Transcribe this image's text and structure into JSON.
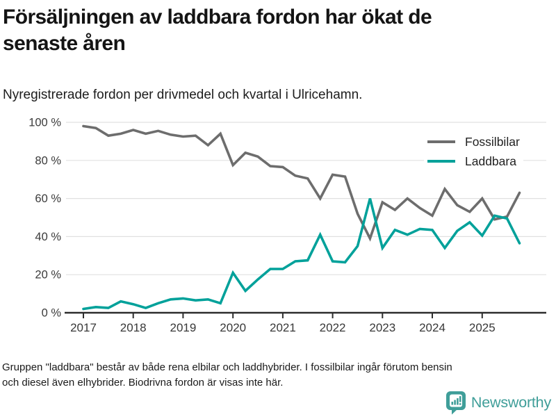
{
  "header": {
    "title_lines": [
      "Försäljningen av laddbara fordon har ökat de",
      "senaste åren"
    ],
    "subtitle": "Nyregistrerade fordon per drivmedel och kvartal i Ulricehamn."
  },
  "chart_data": {
    "type": "line",
    "title": "Försäljningen av laddbara fordon har ökat de senaste åren",
    "subtitle": "Nyregistrerade fordon per drivmedel och kvartal i Ulricehamn.",
    "x_unit": "quarter",
    "x_start": "2017 Q1",
    "x_end": "2025 Q4",
    "x_tick_labels": [
      "2017",
      "2018",
      "2019",
      "2020",
      "2021",
      "2022",
      "2023",
      "2024",
      "2025"
    ],
    "y_tick_labels": [
      "0 %",
      "20 %",
      "40 %",
      "60 %",
      "80 %",
      "100 %"
    ],
    "ylim": [
      0,
      100
    ],
    "grid": "horizontal",
    "legend_position": "top-right",
    "series": [
      {
        "name": "Fossilbilar",
        "color": "#6d6d6d",
        "values": [
          98,
          97,
          93,
          94,
          96,
          94,
          95.5,
          93.5,
          92.5,
          93,
          88,
          94,
          77.5,
          84,
          82,
          77,
          76.5,
          72,
          70.5,
          60,
          72.5,
          71.5,
          52,
          39,
          58,
          54,
          60,
          55,
          51,
          65,
          56.5,
          53,
          60,
          49,
          50.5,
          63
        ]
      },
      {
        "name": "Laddbara",
        "color": "#00a19a",
        "values": [
          2,
          3,
          2.5,
          6,
          4.5,
          2.5,
          5,
          7,
          7.5,
          6.5,
          7,
          5,
          21,
          11.5,
          17.5,
          23,
          23,
          27,
          27.5,
          41,
          27,
          26.5,
          35,
          60,
          34,
          43.5,
          41,
          44,
          43.5,
          34,
          43,
          47.5,
          40.5,
          51,
          49.5,
          36.5
        ]
      }
    ]
  },
  "footer": {
    "note_lines": [
      "Gruppen \"laddbara\" består av både rena elbilar och laddhybrider. I fossilbilar ingår förutom bensin",
      "och diesel även elhybrider. Biodrivna fordon är visas inte här."
    ],
    "brand": {
      "name": "Newsworthy",
      "color": "#3f9e99"
    }
  },
  "style_colors": {
    "gridline": "#e0e0e0",
    "axis": "#2d2d2d",
    "text": "#1a1a1a"
  }
}
